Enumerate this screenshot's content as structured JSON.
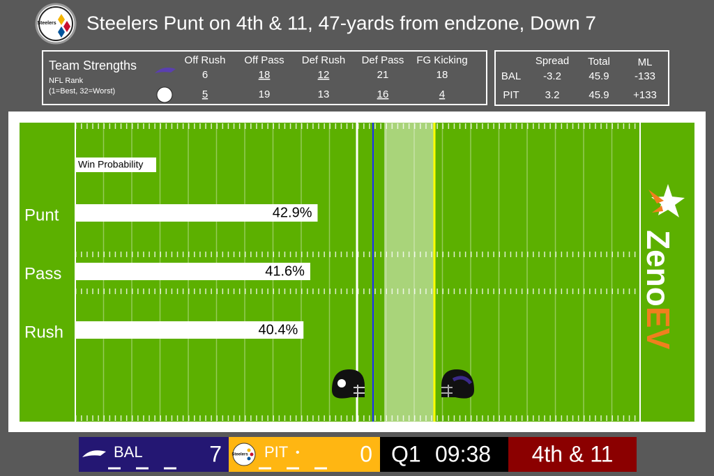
{
  "header": {
    "title": "Steelers Punt on 4th & 11, 47-yards from endzone, Down 7",
    "logo_text": "Steelers"
  },
  "strengths": {
    "title": "Team Strengths",
    "subtitle": "NFL Rank",
    "note": "(1=Best, 32=Worst)",
    "columns": [
      "Off Rush",
      "Off Pass",
      "Def Rush",
      "Def Pass",
      "FG Kicking"
    ],
    "rows": [
      {
        "cells": [
          "6",
          "18",
          "12",
          "21",
          "18"
        ],
        "underline": [
          false,
          true,
          true,
          false,
          false
        ]
      },
      {
        "cells": [
          "5",
          "19",
          "13",
          "16",
          "4"
        ],
        "underline": [
          true,
          false,
          false,
          true,
          true
        ]
      }
    ]
  },
  "odds": {
    "columns": [
      "Spread",
      "Total",
      "ML"
    ],
    "rows": [
      {
        "team": "BAL",
        "cells": [
          "-3.2",
          "45.9",
          "-133"
        ]
      },
      {
        "team": "PIT",
        "cells": [
          "3.2",
          "45.9",
          "+133"
        ]
      }
    ]
  },
  "chart_data": {
    "type": "bar",
    "orientation": "horizontal",
    "title": "Win Probability",
    "categories": [
      "Punt",
      "Pass",
      "Rush"
    ],
    "values": [
      42.9,
      41.6,
      40.4
    ],
    "value_labels": [
      "42.9%",
      "41.6%",
      "40.4%"
    ],
    "color": "#ffffff"
  },
  "brand": {
    "first": "Zeno",
    "second": "EV"
  },
  "scoreboard": {
    "away": {
      "team": "BAL",
      "score": "7"
    },
    "home": {
      "team": "PIT",
      "score": "0",
      "possession": "•"
    },
    "quarter": "Q1",
    "clock": "09:38",
    "down": "4th & 11"
  }
}
